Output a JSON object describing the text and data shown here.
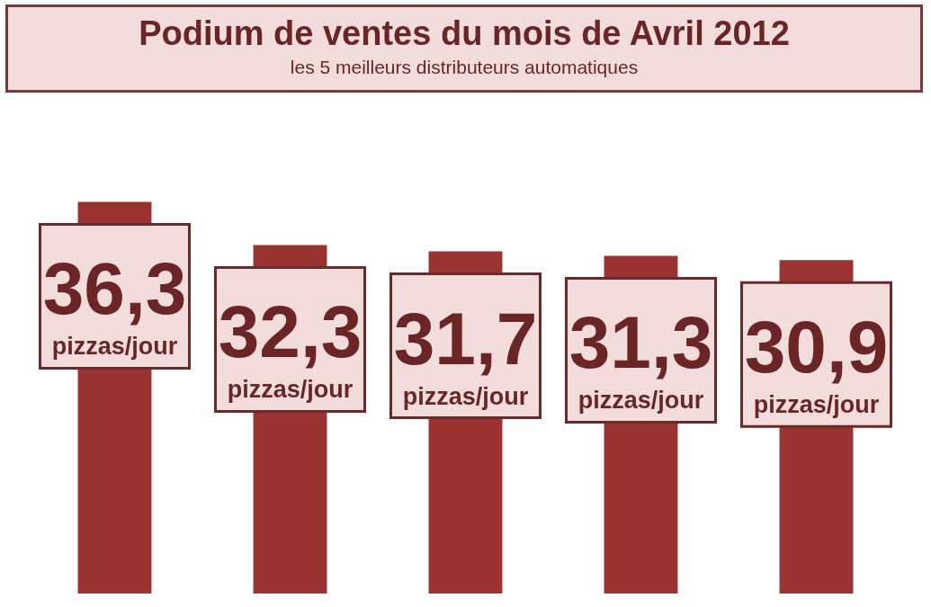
{
  "chart_data": {
    "type": "bar",
    "title": "Podium de ventes du mois de Avril 2012",
    "subtitle": "les 5 meilleurs distributeurs automatiques",
    "categories": [
      null,
      null,
      null,
      null,
      null
    ],
    "values": [
      36.3,
      32.3,
      31.7,
      31.3,
      30.9
    ],
    "value_labels": [
      "36,3 pizzas/jour",
      "32,3 pizzas/jour",
      "31,7 pizzas/jour",
      "31,3 pizzas/jour",
      "30,9 pizzas/jour"
    ],
    "color": "#9b3333"
  }
}
